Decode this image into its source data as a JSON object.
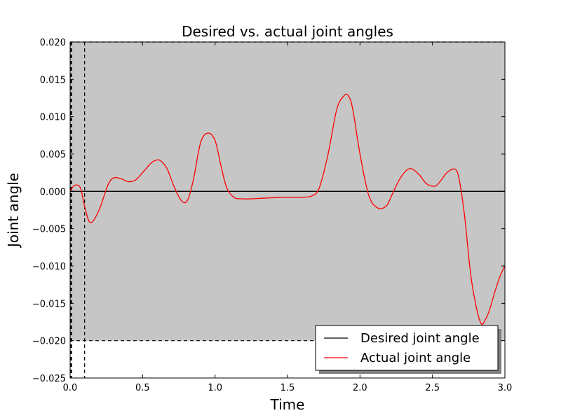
{
  "chart_data": {
    "type": "line",
    "title": "Desired vs. actual joint angles",
    "xlabel": "Time",
    "ylabel": "Joint angle",
    "xlim": [
      0.0,
      3.0
    ],
    "ylim": [
      -0.025,
      0.02
    ],
    "xticks": [
      "0.0",
      "0.5",
      "1.0",
      "1.5",
      "2.0",
      "2.5",
      "3.0"
    ],
    "yticks": [
      "0.020",
      "0.015",
      "0.010",
      "0.005",
      "0.000",
      "−0.005",
      "−0.010",
      "−0.015",
      "−0.020",
      "−0.025"
    ],
    "ytick_values": [
      0.02,
      0.015,
      0.01,
      0.005,
      0.0,
      -0.005,
      -0.01,
      -0.015,
      -0.02,
      -0.025
    ],
    "shaded_region": {
      "x": [
        0.0,
        3.0
      ],
      "y": [
        -0.02,
        0.02
      ],
      "color": "#c6c6c6"
    },
    "reference_lines": {
      "vertical_x": [
        0.005,
        0.01,
        0.1
      ],
      "horizontal_y": [
        0.02,
        -0.02
      ],
      "style": "dashed",
      "color": "#000000"
    },
    "legend_position": "lower right",
    "grid": false,
    "series": [
      {
        "name": "Desired joint angle",
        "color": "#000000",
        "x": [
          0.0,
          3.0
        ],
        "y": [
          0.0,
          0.0
        ]
      },
      {
        "name": "Actual joint angle",
        "color": "#ff0000",
        "x": [
          0.0,
          0.03,
          0.07,
          0.1,
          0.14,
          0.2,
          0.26,
          0.3,
          0.35,
          0.4,
          0.45,
          0.5,
          0.56,
          0.6,
          0.63,
          0.67,
          0.72,
          0.77,
          0.81,
          0.85,
          0.9,
          0.95,
          1.0,
          1.04,
          1.08,
          1.13,
          1.18,
          1.25,
          1.35,
          1.5,
          1.6,
          1.67,
          1.72,
          1.78,
          1.84,
          1.89,
          1.92,
          1.95,
          2.0,
          2.06,
          2.12,
          2.18,
          2.22,
          2.27,
          2.32,
          2.36,
          2.41,
          2.46,
          2.52,
          2.56,
          2.6,
          2.65,
          2.68,
          2.72,
          2.77,
          2.83,
          2.87,
          2.9,
          2.93,
          2.97,
          3.0
        ],
        "y": [
          0.0,
          0.0008,
          0.0005,
          -0.002,
          -0.0042,
          -0.0025,
          0.0008,
          0.0018,
          0.0017,
          0.0013,
          0.0015,
          0.0025,
          0.0038,
          0.0042,
          0.004,
          0.003,
          0.0005,
          -0.0013,
          -0.0012,
          0.0015,
          0.0065,
          0.0078,
          0.0068,
          0.0035,
          0.0005,
          -0.0008,
          -0.001,
          -0.001,
          -0.0009,
          -0.0008,
          -0.0008,
          -0.0006,
          0.0005,
          0.005,
          0.011,
          0.0128,
          0.0128,
          0.011,
          0.005,
          -0.0005,
          -0.0022,
          -0.002,
          -0.0005,
          0.0015,
          0.0028,
          0.003,
          0.0022,
          0.001,
          0.0007,
          0.0015,
          0.0025,
          0.003,
          0.002,
          -0.003,
          -0.012,
          -0.0175,
          -0.017,
          -0.0155,
          -0.0135,
          -0.0112,
          -0.01
        ]
      }
    ]
  }
}
